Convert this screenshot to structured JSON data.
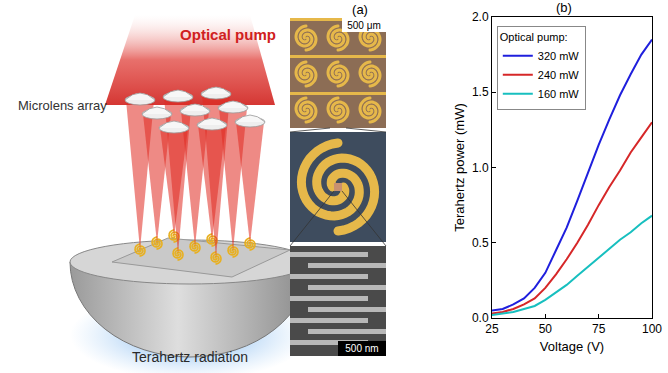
{
  "panel_a": {
    "label": "(a)",
    "pump_label": "Optical pump",
    "lens_label": "Microlens array",
    "output_label": "Terahertz radiation",
    "scale_bars": [
      "500 μm",
      "500 nm"
    ]
  },
  "chart_data": {
    "type": "line",
    "title": "(b)",
    "x_label": "Voltage (V)",
    "y_label": "Terahertz power (mW)",
    "legend_title": "Optical pump:",
    "x": [
      25,
      30,
      35,
      40,
      45,
      50,
      55,
      60,
      65,
      70,
      75,
      80,
      85,
      90,
      95,
      100
    ],
    "series": [
      {
        "name": "320 mW",
        "color": "#1f1fdd",
        "values": [
          0.05,
          0.06,
          0.09,
          0.13,
          0.2,
          0.3,
          0.45,
          0.6,
          0.78,
          0.97,
          1.15,
          1.32,
          1.48,
          1.62,
          1.75,
          1.85
        ]
      },
      {
        "name": "240 mW",
        "color": "#d62728",
        "values": [
          0.03,
          0.04,
          0.06,
          0.09,
          0.13,
          0.2,
          0.29,
          0.39,
          0.5,
          0.62,
          0.75,
          0.87,
          0.98,
          1.1,
          1.2,
          1.3
        ]
      },
      {
        "name": "160 mW",
        "color": "#17bfbf",
        "values": [
          0.02,
          0.03,
          0.04,
          0.06,
          0.08,
          0.12,
          0.17,
          0.22,
          0.28,
          0.34,
          0.4,
          0.46,
          0.52,
          0.57,
          0.63,
          0.68
        ]
      }
    ],
    "xlim": [
      25,
      100
    ],
    "xticks": [
      25,
      50,
      75,
      100
    ],
    "ylim": [
      0,
      2
    ],
    "yticks": [
      {
        "value": 0,
        "label": "0.0"
      },
      {
        "value": 0.5,
        "label": "0.5"
      },
      {
        "value": 1,
        "label": "1.0"
      },
      {
        "value": 1.5,
        "label": "1.5"
      },
      {
        "value": 2,
        "label": "2.0"
      }
    ],
    "legend": "upper left",
    "grid": false
  }
}
